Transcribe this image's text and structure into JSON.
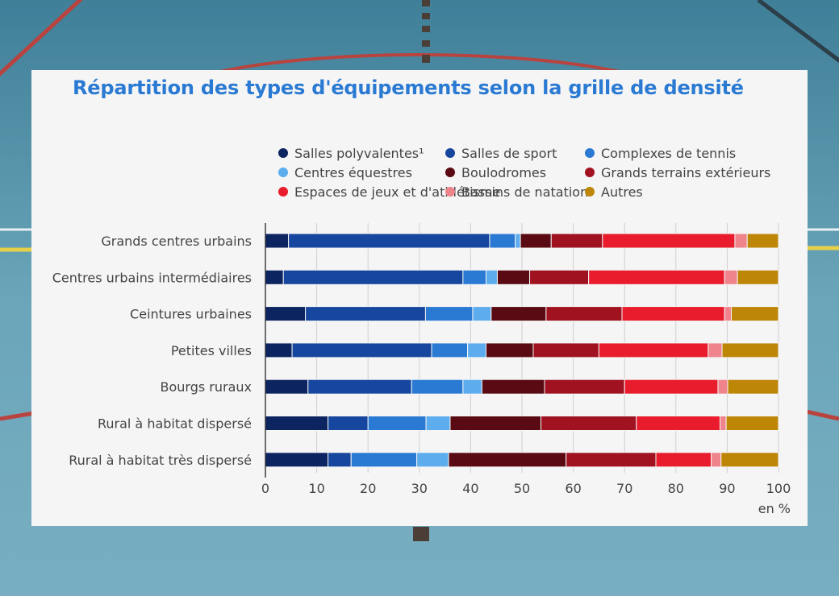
{
  "colors": {
    "title": "#2a7ad3",
    "text": "#444444",
    "axis": "#333333",
    "grid": "#cfcfcf",
    "card_bg": "#f5f5f5"
  },
  "chart_data": {
    "type": "bar",
    "orientation": "horizontal",
    "stacked": true,
    "title": "Répartition des types d'équipements selon la grille de densité",
    "unit_label": "en %",
    "xlim": [
      0,
      100
    ],
    "xticks": [
      0,
      10,
      20,
      30,
      40,
      50,
      60,
      70,
      80,
      90,
      100
    ],
    "grid": "vertical",
    "legend_position": "top",
    "categories": [
      "Grands centres urbains",
      "Centres urbains intermédiaires",
      "Ceintures urbaines",
      "Petites villes",
      "Bourgs ruraux",
      "Rural à habitat dispersé",
      "Rural à habitat très dispersé"
    ],
    "series": [
      {
        "name": "Salles polyvalentes¹",
        "color": "#0c2460",
        "values": [
          4.5,
          3.5,
          7.8,
          5.2,
          8.3,
          12.2,
          12.2
        ]
      },
      {
        "name": "Salles de sport",
        "color": "#17469e",
        "values": [
          39.2,
          35.0,
          23.4,
          27.2,
          20.2,
          7.8,
          4.5
        ]
      },
      {
        "name": "Complexes de tennis",
        "color": "#2a7ad3",
        "values": [
          5.0,
          4.5,
          9.2,
          7.0,
          10.0,
          11.3,
          12.8
        ]
      },
      {
        "name": "Centres équestres",
        "color": "#5dadee",
        "values": [
          1.0,
          2.2,
          3.6,
          3.6,
          3.7,
          4.7,
          6.2
        ]
      },
      {
        "name": "Boulodromes",
        "color": "#5a0a12",
        "values": [
          6.0,
          6.3,
          10.7,
          9.2,
          12.2,
          17.7,
          22.9
        ]
      },
      {
        "name": "Grands terrains extérieurs",
        "color": "#a01220",
        "values": [
          10.0,
          11.5,
          14.8,
          12.8,
          15.6,
          18.6,
          17.5
        ]
      },
      {
        "name": "Espaces de jeux et d'athlétisme",
        "color": "#e81c2c",
        "values": [
          25.8,
          26.5,
          20.0,
          21.3,
          18.2,
          16.3,
          10.8
        ]
      },
      {
        "name": "Bassins de natation",
        "color": "#f0848c",
        "values": [
          2.4,
          2.5,
          1.3,
          2.7,
          1.9,
          1.2,
          1.9
        ]
      },
      {
        "name": "Autres",
        "color": "#bd8606",
        "values": [
          6.1,
          8.0,
          9.2,
          11.0,
          9.9,
          10.2,
          11.2
        ]
      }
    ]
  }
}
